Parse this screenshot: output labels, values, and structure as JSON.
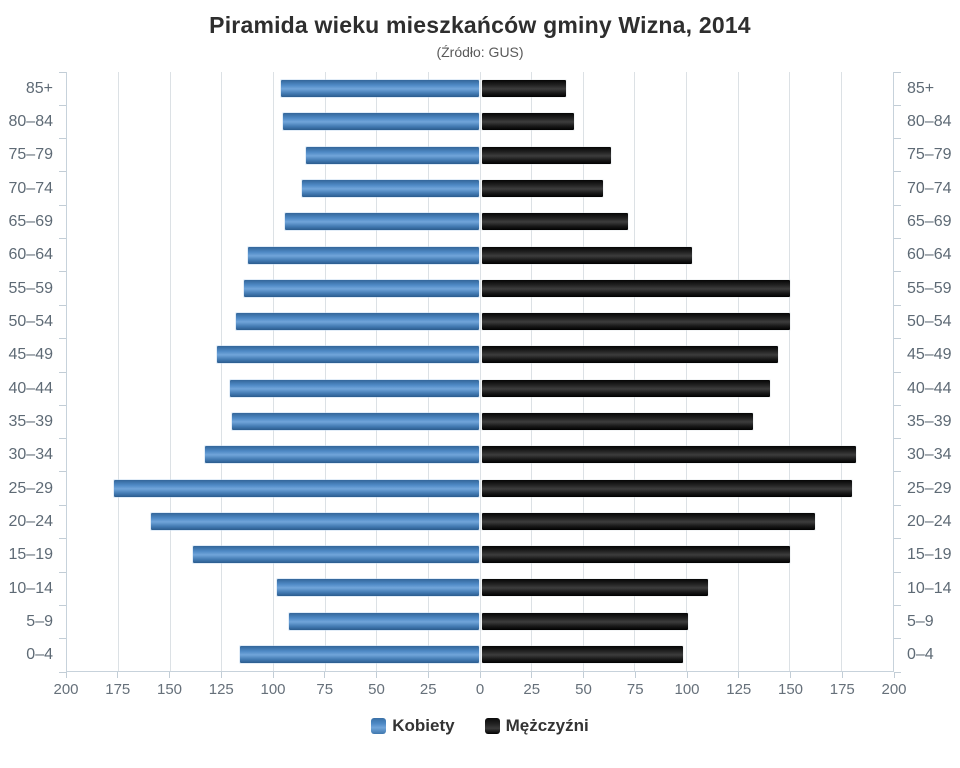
{
  "chart": {
    "title": "Piramida wieku mieszkańców gminy Wizna, 2014",
    "subtitle": "(Źródło: GUS)"
  },
  "chart_data": {
    "type": "bar",
    "variant": "population-pyramid",
    "categories_top_to_bottom": [
      "85+",
      "80–84",
      "75–79",
      "70–74",
      "65–69",
      "60–64",
      "55–59",
      "50–54",
      "45–49",
      "40–44",
      "35–39",
      "30–34",
      "25–29",
      "20–24",
      "15–19",
      "10–14",
      "5–9",
      "0–4"
    ],
    "series": [
      {
        "name": "Kobiety",
        "side": "left",
        "color": "#4e89c5",
        "values": [
          96,
          95,
          84,
          86,
          94,
          112,
          114,
          118,
          127,
          121,
          120,
          133,
          177,
          159,
          139,
          98,
          92,
          116
        ]
      },
      {
        "name": "Mężczyźni",
        "side": "right",
        "color": "#1a1a1a",
        "values": [
          41,
          45,
          63,
          59,
          71,
          102,
          150,
          150,
          144,
          140,
          132,
          182,
          180,
          162,
          150,
          110,
          100,
          98
        ]
      }
    ],
    "axis_max": 200,
    "grid_step": 25,
    "x_tick_labels": [
      "200",
      "175",
      "150",
      "125",
      "100",
      "75",
      "50",
      "25",
      "0",
      "25",
      "50",
      "75",
      "100",
      "125",
      "150",
      "175",
      "200"
    ],
    "grid": true,
    "legend_position": "bottom"
  }
}
